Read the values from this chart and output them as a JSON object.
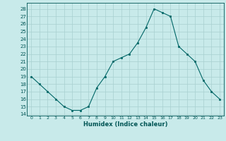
{
  "x": [
    0,
    1,
    2,
    3,
    4,
    5,
    6,
    7,
    8,
    9,
    10,
    11,
    12,
    13,
    14,
    15,
    16,
    17,
    18,
    19,
    20,
    21,
    22,
    23
  ],
  "y": [
    19,
    18,
    17,
    16,
    15,
    14.5,
    14.5,
    15,
    17.5,
    19,
    21,
    21.5,
    22,
    23.5,
    25.5,
    28,
    27.5,
    27,
    23,
    22,
    21,
    18.5,
    17,
    16
  ],
  "line_color": "#006666",
  "marker_color": "#006666",
  "bg_color": "#c8eaea",
  "grid_color": "#a8d0d0",
  "tick_color": "#005555",
  "xlabel": "Humidex (Indice chaleur)",
  "ylabel_ticks": [
    14,
    15,
    16,
    17,
    18,
    19,
    20,
    21,
    22,
    23,
    24,
    25,
    26,
    27,
    28
  ],
  "ylim": [
    13.8,
    28.8
  ],
  "xlim": [
    -0.5,
    23.5
  ]
}
